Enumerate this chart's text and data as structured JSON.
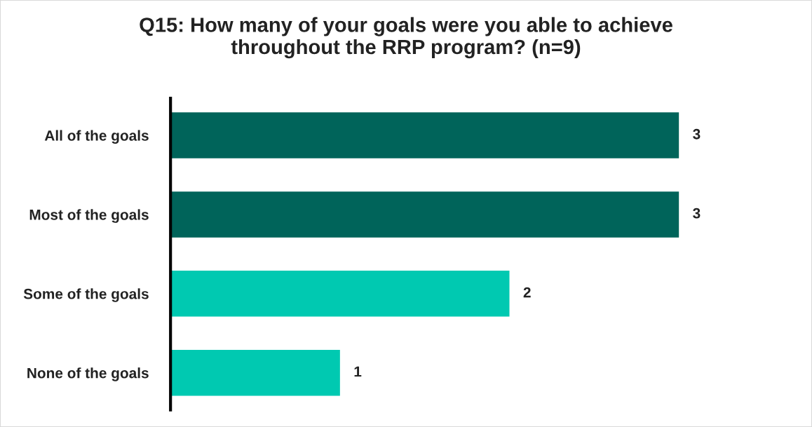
{
  "chart_data": {
    "type": "bar",
    "orientation": "horizontal",
    "title": "Q15: How many of your goals were you able to achieve\nthroughout the RRP program? (n=9)",
    "categories": [
      "All of the goals",
      "Most of the goals",
      "Some of the goals",
      "None of the goals"
    ],
    "values": [
      3,
      3,
      2,
      1
    ],
    "colors": [
      "#00645a",
      "#00645a",
      "#00c9b1",
      "#00c9b1"
    ],
    "data_labels": true,
    "grid": false,
    "legend": false
  }
}
